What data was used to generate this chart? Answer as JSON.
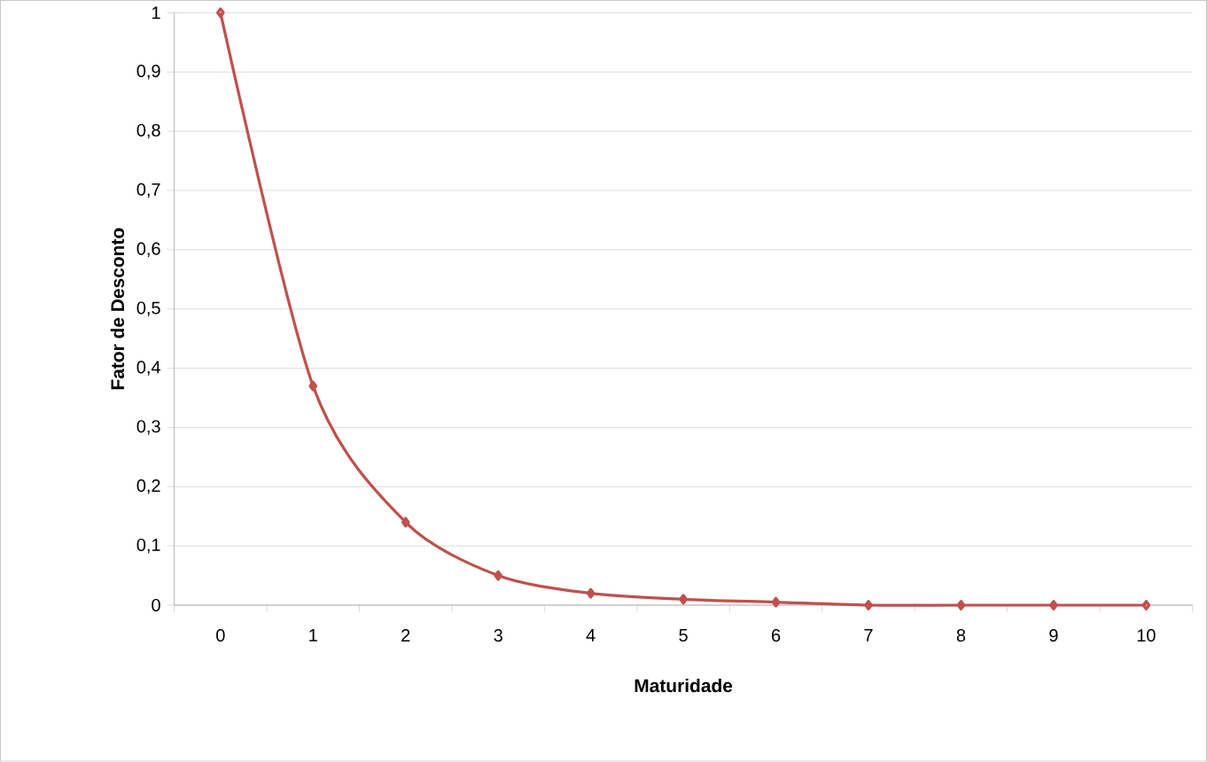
{
  "chart_data": {
    "type": "line",
    "xlabel": "Maturidade",
    "ylabel": "Fator de Desconto",
    "categories": [
      "0",
      "1",
      "2",
      "3",
      "4",
      "5",
      "6",
      "7",
      "8",
      "9",
      "10"
    ],
    "series": [
      {
        "color": "#c0504d",
        "values": [
          1,
          0.37,
          0.14,
          0.05,
          0.02,
          0.01,
          0.005,
          0,
          0,
          0,
          0
        ]
      }
    ],
    "ylim": [
      0,
      1
    ],
    "yticks": [
      0,
      {
        "value": 0.1,
        "label": "0,1"
      },
      {
        "value": 0.2,
        "label": "0,2"
      },
      {
        "value": 0.3,
        "label": "0,3"
      },
      {
        "value": 0.4,
        "label": "0,4"
      },
      {
        "value": 0.5,
        "label": "0,5"
      },
      {
        "value": 0.6,
        "label": "0,6"
      },
      {
        "value": 0.7,
        "label": "0,7"
      },
      {
        "value": 0.8,
        "label": "0,8"
      },
      {
        "value": 0.9,
        "label": "0,9"
      },
      1
    ],
    "grid": "y",
    "marker": "diamond",
    "line_style": "solid"
  }
}
